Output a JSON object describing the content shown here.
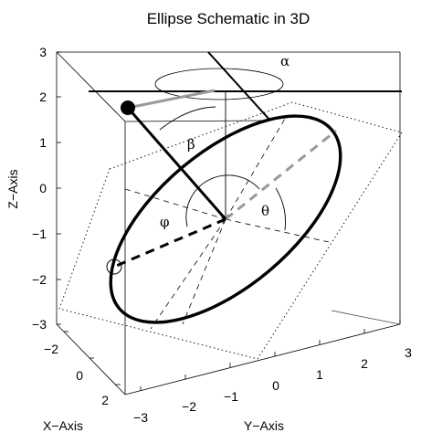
{
  "figure": {
    "title": "Ellipse Schematic in 3D",
    "x_axis_label": "X−Axis",
    "y_axis_label": "Y−Axis",
    "z_axis_label": "Z−Axis",
    "x_ticks": [
      "−2",
      "0",
      "2"
    ],
    "y_ticks": [
      "−3",
      "−2",
      "−1",
      "0",
      "1",
      "2",
      "3"
    ],
    "z_ticks": [
      "3",
      "2",
      "1",
      "0",
      "−1",
      "−2",
      "−3"
    ],
    "angles": {
      "alpha": "α",
      "beta": "β",
      "phi": "φ",
      "theta": "θ"
    }
  }
}
